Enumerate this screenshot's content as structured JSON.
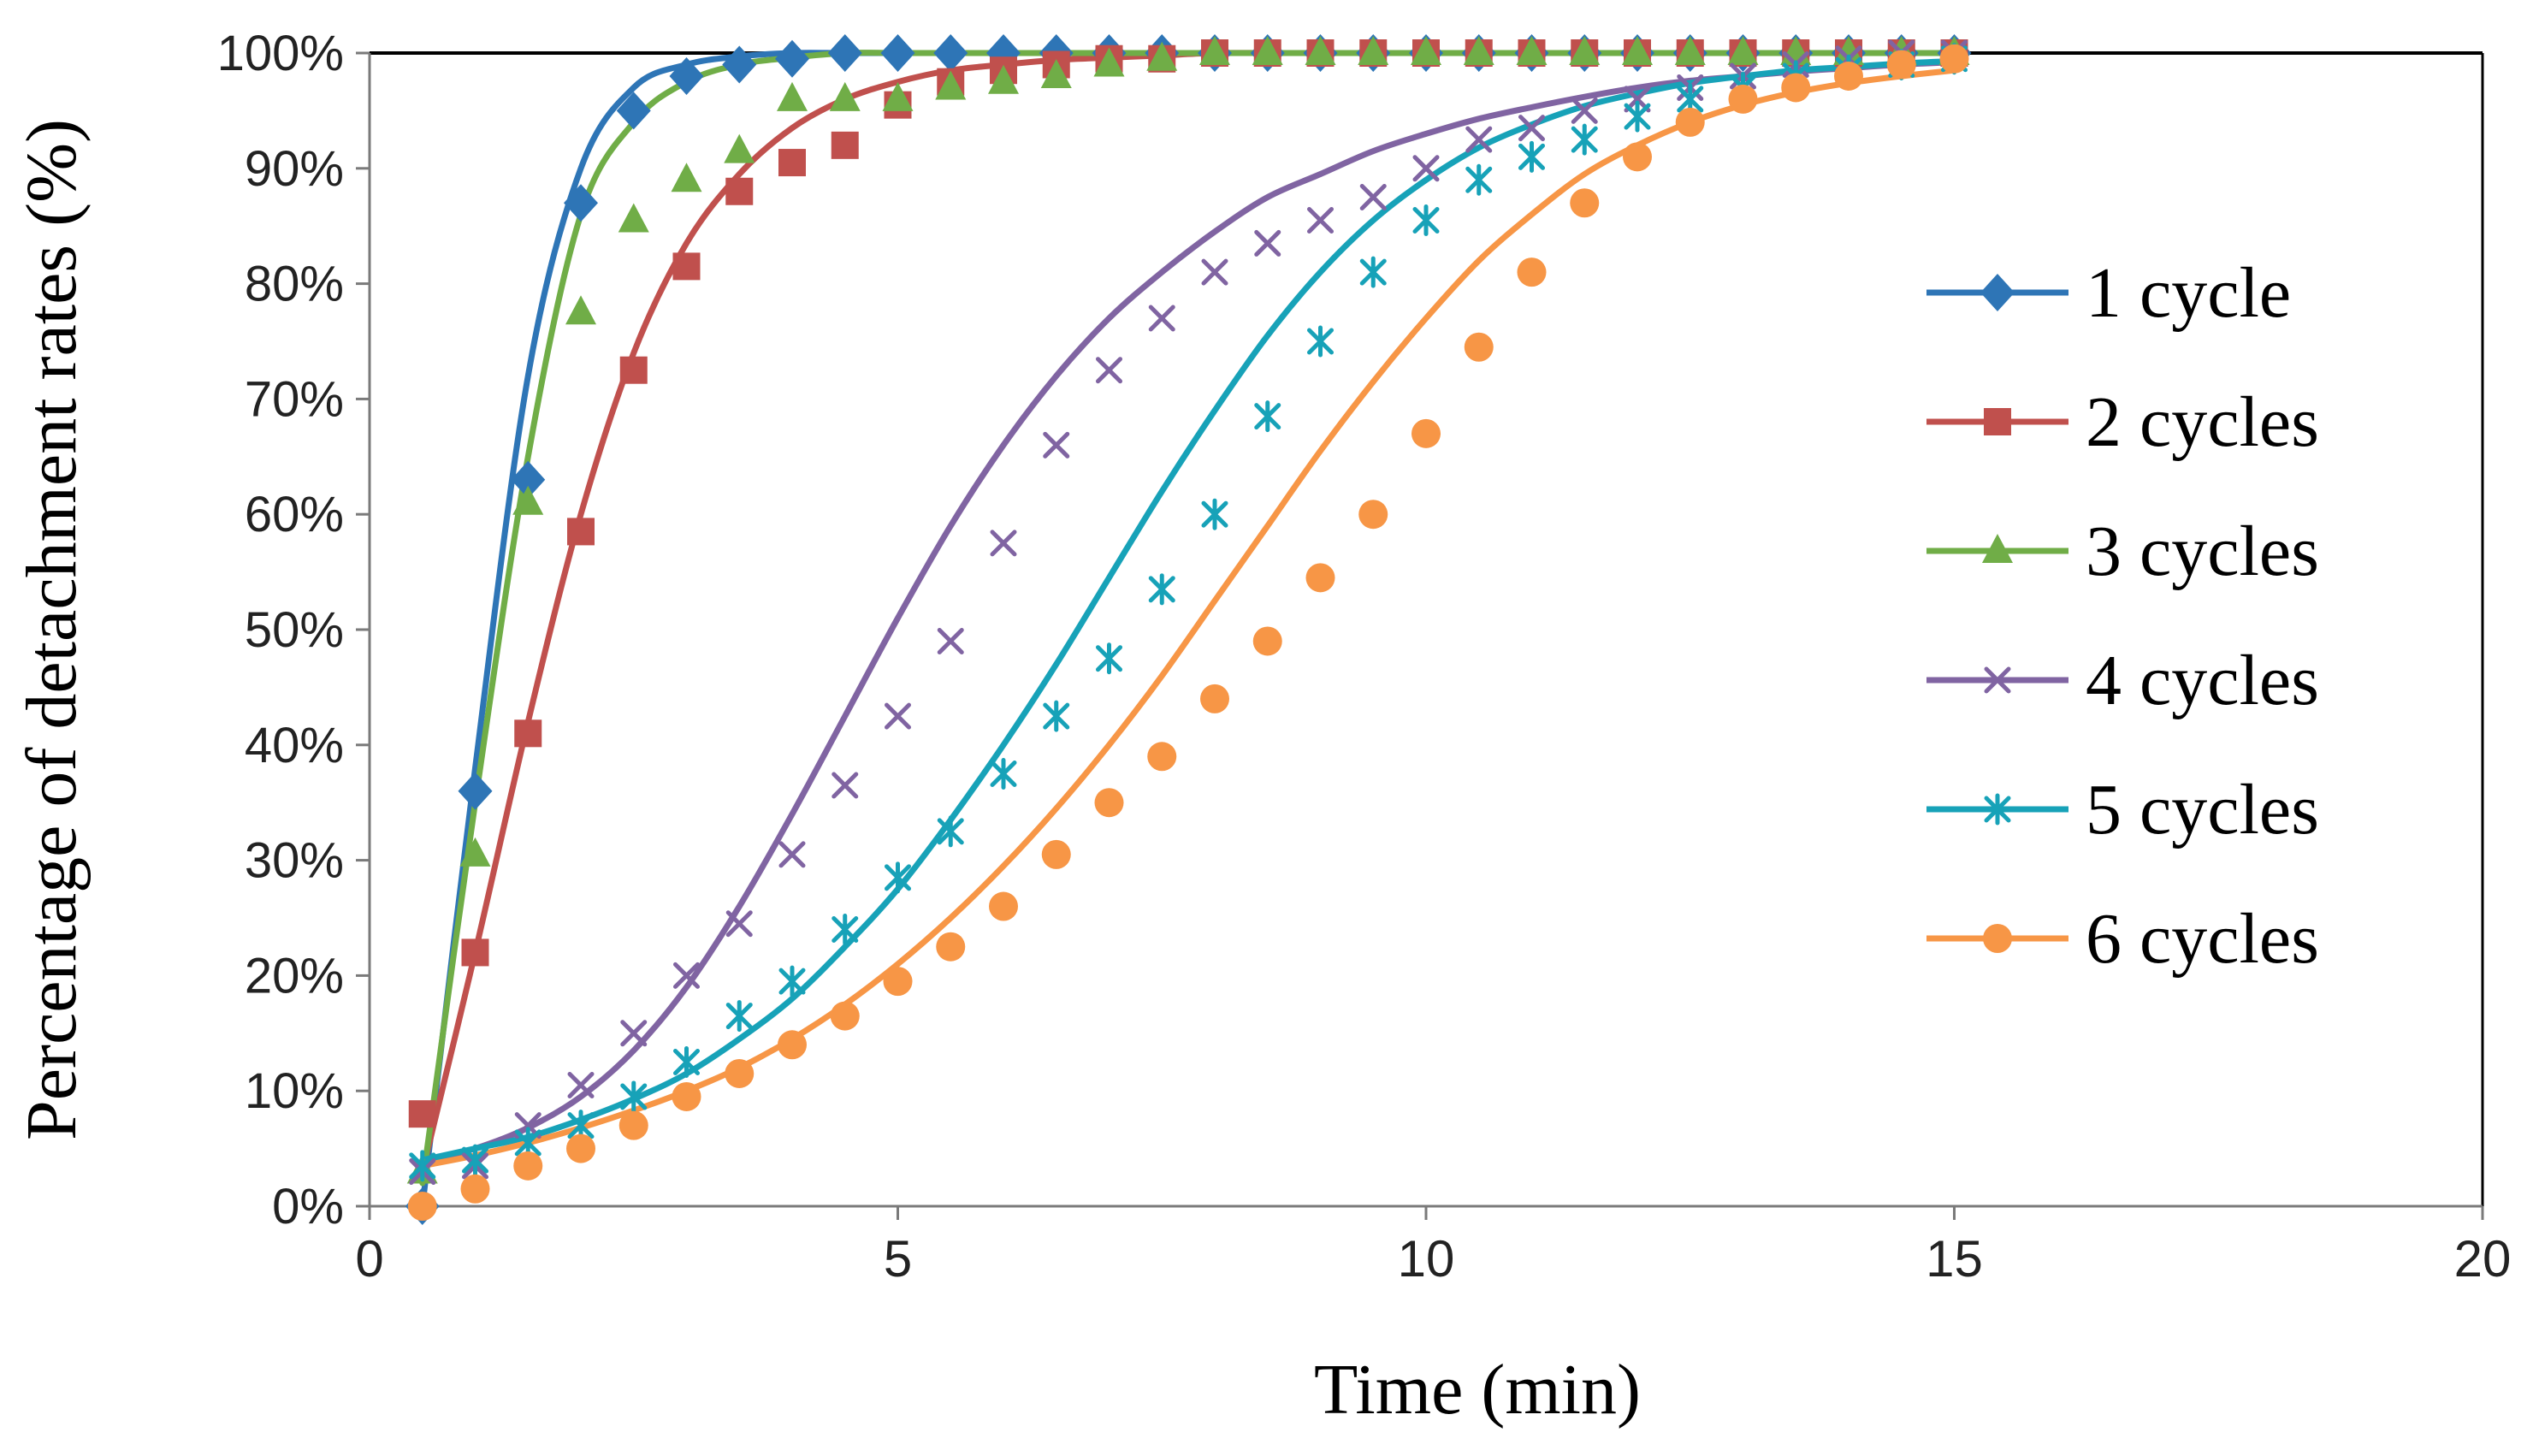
{
  "chart_data": {
    "type": "line",
    "title": "",
    "xlabel": "Time (min)",
    "ylabel": "Percentage of detachment rates (%)",
    "xlim": [
      0,
      20
    ],
    "ylim": [
      0,
      100
    ],
    "x_ticks": [
      0,
      5,
      10,
      15,
      20
    ],
    "x_tick_labels": [
      "0",
      "5",
      "10",
      "15",
      "20"
    ],
    "y_ticks": [
      0,
      10,
      20,
      30,
      40,
      50,
      60,
      70,
      80,
      90,
      100
    ],
    "y_tick_labels": [
      "0%",
      "10%",
      "20%",
      "30%",
      "40%",
      "50%",
      "60%",
      "70%",
      "80%",
      "90%",
      "100%"
    ],
    "legend_position": "right",
    "x": [
      0.5,
      1,
      1.5,
      2,
      2.5,
      3,
      3.5,
      4,
      4.5,
      5,
      5.5,
      6,
      6.5,
      7,
      7.5,
      8,
      8.5,
      9,
      9.5,
      10,
      10.5,
      11,
      11.5,
      12,
      12.5,
      13,
      13.5,
      14,
      14.5,
      15
    ],
    "series": [
      {
        "name": "1 cycle",
        "color": "#2E75B6",
        "marker": "diamond",
        "values": [
          0,
          36,
          63,
          87,
          95,
          98,
          99,
          99.5,
          100,
          100,
          100,
          100,
          100,
          100,
          100,
          100,
          100,
          100,
          100,
          100,
          100,
          100,
          100,
          100,
          100,
          100,
          100,
          100,
          100,
          100
        ],
        "fit": [
          0,
          38,
          72,
          90,
          97,
          99,
          99.7,
          100,
          100,
          100,
          100,
          100,
          100,
          100,
          100,
          100,
          100,
          100,
          100,
          100,
          100,
          100,
          100,
          100,
          100,
          100,
          100,
          100,
          100,
          100
        ]
      },
      {
        "name": "2 cycles",
        "color": "#C0504D",
        "marker": "square",
        "values": [
          8,
          22,
          41,
          58.5,
          72.5,
          81.5,
          88,
          90.5,
          92,
          95.5,
          97.5,
          98.5,
          99,
          99.5,
          99.5,
          100,
          100,
          100,
          100,
          100,
          100,
          100,
          100,
          100,
          100,
          100,
          100,
          100,
          100,
          100
        ],
        "fit": [
          3,
          22,
          42,
          60,
          74,
          83.5,
          89.5,
          93.5,
          96,
          97.5,
          98.5,
          99,
          99.4,
          99.6,
          99.8,
          100,
          100,
          100,
          100,
          100,
          100,
          100,
          100,
          100,
          100,
          100,
          100,
          100,
          100,
          100
        ]
      },
      {
        "name": "3 cycles",
        "color": "#70AD47",
        "marker": "triangle",
        "values": [
          3,
          30.5,
          61,
          77.5,
          85.5,
          89,
          91.5,
          96,
          96,
          96,
          97,
          97.5,
          98,
          99,
          99.5,
          100,
          100,
          100,
          100,
          100,
          100,
          100,
          100,
          100,
          100,
          100,
          100,
          100,
          100,
          100
        ],
        "fit": [
          2,
          35,
          65,
          86,
          94,
          97.5,
          99,
          99.6,
          100,
          100,
          100,
          100,
          100,
          100,
          100,
          100,
          100,
          100,
          100,
          100,
          100,
          100,
          100,
          100,
          100,
          100,
          100,
          100,
          100,
          100
        ]
      },
      {
        "name": "4 cycles",
        "color": "#8064A2",
        "marker": "x",
        "values": [
          3,
          3.5,
          7,
          10.5,
          15,
          20,
          24.5,
          30.5,
          36.5,
          42.5,
          49,
          57.5,
          66,
          72.5,
          77,
          81,
          83.5,
          85.5,
          87.5,
          90,
          92.5,
          93.5,
          95,
          96,
          97,
          98,
          99,
          99.5,
          100,
          100
        ],
        "fit": [
          3.8,
          5,
          6.8,
          9.5,
          13.5,
          19,
          26,
          34,
          42.5,
          51,
          59,
          66,
          72,
          77,
          81,
          84.5,
          87.5,
          89.5,
          91.5,
          93,
          94.3,
          95.3,
          96.2,
          97,
          97.6,
          98,
          98.4,
          98.7,
          99,
          99.2
        ]
      },
      {
        "name": "5 cycles",
        "color": "#17A2B8",
        "marker": "asterisk",
        "values": [
          3.5,
          4,
          5.5,
          7,
          9.5,
          12.5,
          16.5,
          19.5,
          24,
          28.5,
          32.5,
          37.5,
          42.5,
          47.5,
          53.5,
          60,
          68.5,
          75,
          81,
          85.5,
          89,
          91,
          92.5,
          94.5,
          96,
          97,
          98,
          98.5,
          99,
          99.5
        ],
        "fit": [
          4,
          5,
          6,
          7.5,
          9.3,
          11.5,
          14.5,
          18,
          22.5,
          27.5,
          33.5,
          40,
          47,
          54.5,
          62,
          69,
          75.5,
          81,
          85.5,
          89,
          91.8,
          93.8,
          95.4,
          96.5,
          97.4,
          98,
          98.5,
          98.8,
          99.1,
          99.3
        ]
      },
      {
        "name": "6 cycles",
        "color": "#F79646",
        "marker": "circle",
        "values": [
          0,
          1.5,
          3.5,
          5,
          7,
          9.5,
          11.5,
          14,
          16.5,
          19.5,
          22.5,
          26,
          30.5,
          35,
          39,
          44,
          49,
          54.5,
          60,
          67,
          74.5,
          81,
          87,
          91,
          94,
          96,
          97,
          98,
          99,
          99.5
        ],
        "fit": [
          3.5,
          4.4,
          5.5,
          6.8,
          8.3,
          10,
          12,
          14.5,
          17.5,
          21,
          25,
          29.5,
          34.5,
          40,
          46,
          52.5,
          59,
          65.5,
          71.5,
          77,
          82,
          86,
          89.5,
          92,
          94,
          95.5,
          96.6,
          97.4,
          98,
          98.5
        ]
      }
    ]
  }
}
